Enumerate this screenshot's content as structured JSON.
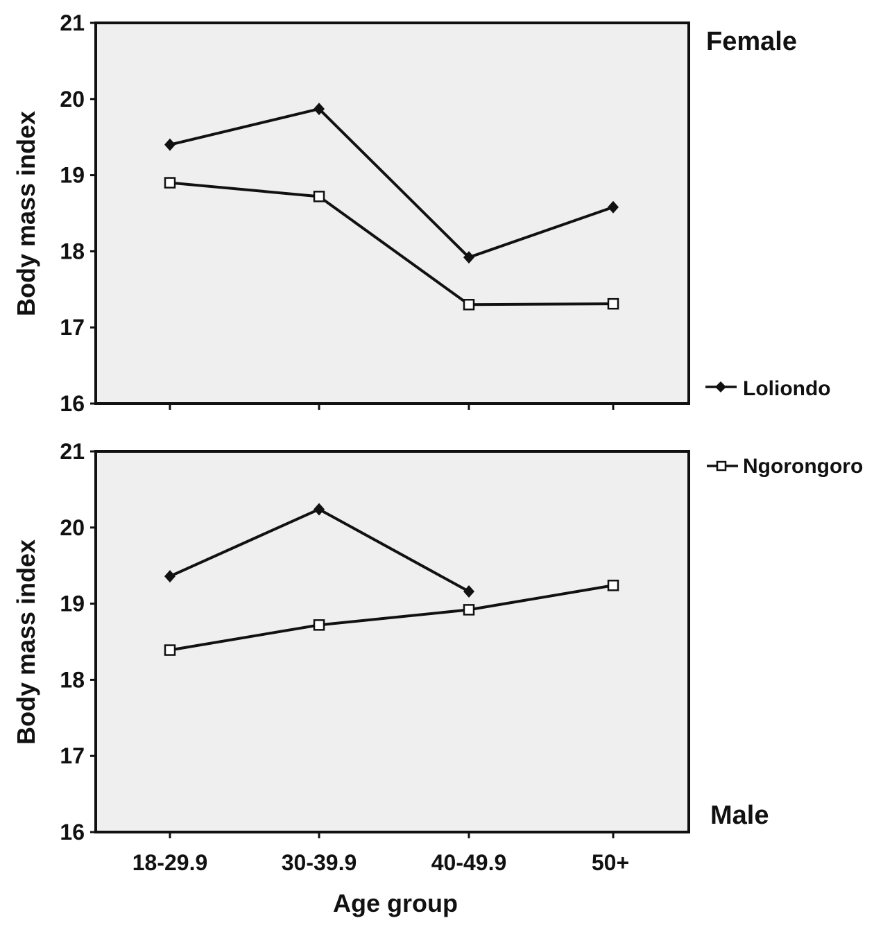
{
  "chart_data": {
    "type": "line",
    "xlabel": "Age group",
    "ylabel": "Body mass index",
    "categories": [
      "18-29.9",
      "30-39.9",
      "40-49.9",
      "50+"
    ],
    "ylim": [
      16,
      21
    ],
    "yticks": [
      "16",
      "17",
      "18",
      "19",
      "20",
      "21"
    ],
    "grid": false,
    "legend_position": "right, between panels",
    "background": "#efefef",
    "colors": {
      "line": "#111111",
      "filled_marker": "#111111",
      "open_marker": "#ffffff"
    },
    "legend": [
      {
        "label": "Loliondo",
        "marker": "filled-diamond"
      },
      {
        "label": "Ngorongoro",
        "marker": "open-square"
      }
    ],
    "panels": [
      {
        "title": "Female",
        "series": [
          {
            "name": "Loliondo",
            "marker": "filled-diamond",
            "values": [
              19.4,
              19.87,
              17.92,
              18.58
            ]
          },
          {
            "name": "Ngorongoro",
            "marker": "open-square",
            "values": [
              18.9,
              18.72,
              17.3,
              17.31
            ]
          }
        ]
      },
      {
        "title": "Male",
        "series": [
          {
            "name": "Loliondo",
            "marker": "filled-diamond",
            "values": [
              19.36,
              20.24,
              19.16,
              null
            ]
          },
          {
            "name": "Ngorongoro",
            "marker": "open-square",
            "values": [
              18.39,
              18.72,
              18.92,
              19.24
            ]
          }
        ]
      }
    ]
  }
}
